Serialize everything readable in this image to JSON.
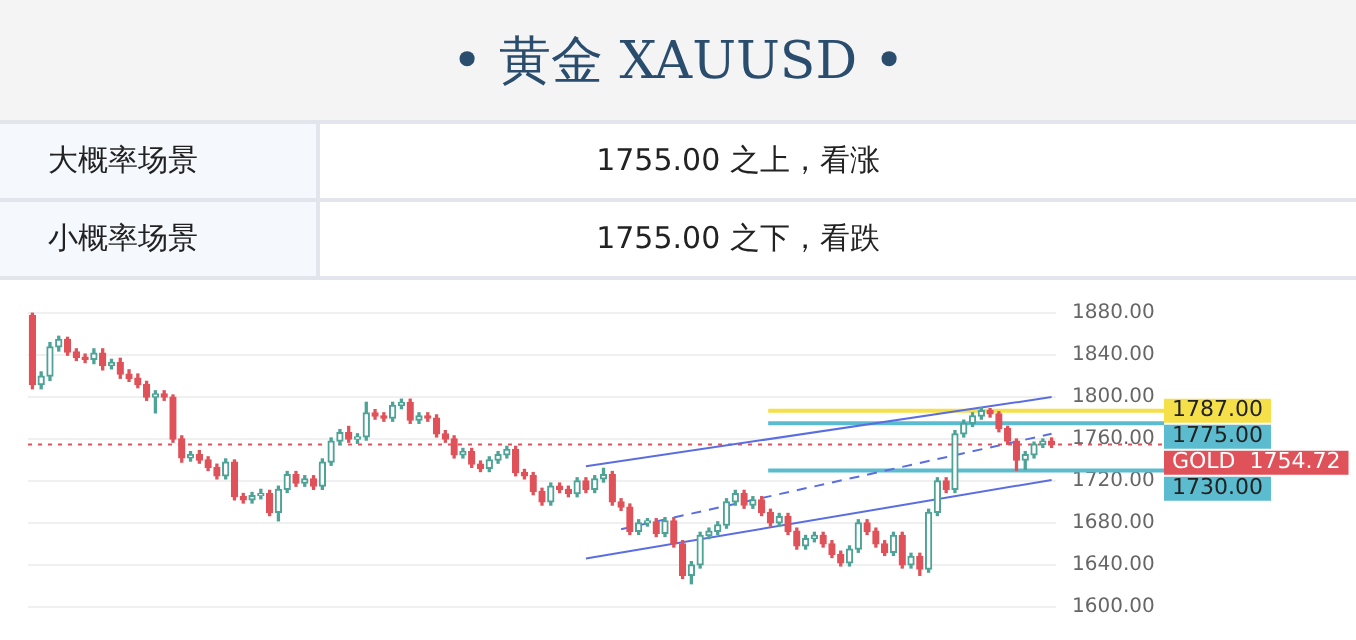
{
  "chart_data": [
    {
      "type": "other",
      "title": "• 黄金  XAUUSD •",
      "annotations": [
        "大概率场景",
        "1755.00 之上，看涨",
        "小概率场景",
        "1755.00 之下，看跌"
      ]
    },
    {
      "type": "candlestick",
      "categories": [
        null,
        null,
        null,
        null,
        null,
        null,
        null,
        null,
        null,
        null,
        null,
        null,
        null,
        null,
        null,
        null,
        null,
        null,
        null,
        null,
        null,
        null,
        null,
        null,
        null,
        null,
        null,
        null,
        null,
        null,
        null,
        null,
        null,
        null,
        null,
        null,
        null,
        null,
        null,
        null,
        null,
        null,
        null,
        null,
        null,
        null,
        null,
        null,
        null,
        null,
        null,
        null,
        null,
        null,
        null,
        null,
        null,
        null,
        null,
        null,
        null,
        null,
        null,
        null,
        null,
        null,
        null,
        null,
        null,
        null,
        null,
        null,
        null,
        null,
        null,
        null,
        null,
        null,
        null,
        null,
        null,
        null,
        null,
        null,
        null,
        null,
        null,
        null,
        null,
        null,
        null,
        null,
        null,
        null,
        null,
        null,
        null,
        null,
        null,
        null,
        null,
        null,
        null,
        null,
        null,
        null,
        null,
        null,
        null,
        null,
        null,
        null,
        null,
        null,
        null,
        null,
        null
      ],
      "ohlc": [
        [
          1878,
          1880,
          1808,
          1812
        ],
        [
          1812,
          1824,
          1808,
          1820
        ],
        [
          1820,
          1852,
          1816,
          1848
        ],
        [
          1848,
          1858,
          1844,
          1855
        ],
        [
          1855,
          1857,
          1840,
          1843
        ],
        [
          1843,
          1846,
          1835,
          1838
        ],
        [
          1838,
          1841,
          1833,
          1836
        ],
        [
          1836,
          1846,
          1832,
          1842
        ],
        [
          1842,
          1846,
          1826,
          1830
        ],
        [
          1830,
          1836,
          1827,
          1833
        ],
        [
          1833,
          1837,
          1818,
          1822
        ],
        [
          1822,
          1826,
          1815,
          1818
        ],
        [
          1818,
          1822,
          1809,
          1812
        ],
        [
          1812,
          1815,
          1797,
          1800
        ],
        [
          1800,
          1806,
          1785,
          1803
        ],
        [
          1803,
          1806,
          1797,
          1800
        ],
        [
          1800,
          1802,
          1757,
          1760
        ],
        [
          1760,
          1763,
          1738,
          1742
        ],
        [
          1742,
          1748,
          1739,
          1745
        ],
        [
          1745,
          1749,
          1737,
          1740
        ],
        [
          1740,
          1743,
          1730,
          1733
        ],
        [
          1733,
          1736,
          1722,
          1725
        ],
        [
          1725,
          1741,
          1722,
          1738
        ],
        [
          1738,
          1740,
          1702,
          1705
        ],
        [
          1705,
          1708,
          1699,
          1702
        ],
        [
          1702,
          1709,
          1699,
          1706
        ],
        [
          1706,
          1712,
          1703,
          1708
        ],
        [
          1708,
          1711,
          1687,
          1690
        ],
        [
          1690,
          1715,
          1682,
          1712
        ],
        [
          1712,
          1729,
          1709,
          1726
        ],
        [
          1726,
          1729,
          1715,
          1718
        ],
        [
          1718,
          1725,
          1715,
          1722
        ],
        [
          1722,
          1725,
          1712,
          1715
        ],
        [
          1715,
          1741,
          1712,
          1738
        ],
        [
          1738,
          1761,
          1735,
          1758
        ],
        [
          1758,
          1769,
          1755,
          1766
        ],
        [
          1766,
          1772,
          1757,
          1760
        ],
        [
          1760,
          1765,
          1756,
          1762
        ],
        [
          1762,
          1795,
          1759,
          1785
        ],
        [
          1785,
          1788,
          1779,
          1782
        ],
        [
          1782,
          1785,
          1777,
          1780
        ],
        [
          1780,
          1795,
          1777,
          1792
        ],
        [
          1792,
          1798,
          1789,
          1795
        ],
        [
          1795,
          1798,
          1775,
          1778
        ],
        [
          1778,
          1785,
          1775,
          1782
        ],
        [
          1782,
          1785,
          1777,
          1780
        ],
        [
          1780,
          1783,
          1762,
          1765
        ],
        [
          1765,
          1768,
          1757,
          1760
        ],
        [
          1760,
          1763,
          1742,
          1745
        ],
        [
          1745,
          1751,
          1742,
          1748
        ],
        [
          1748,
          1751,
          1733,
          1736
        ],
        [
          1736,
          1739,
          1729,
          1732
        ],
        [
          1732,
          1743,
          1729,
          1740
        ],
        [
          1740,
          1748,
          1737,
          1745
        ],
        [
          1745,
          1753,
          1742,
          1750
        ],
        [
          1750,
          1753,
          1725,
          1728
        ],
        [
          1728,
          1731,
          1722,
          1725
        ],
        [
          1725,
          1728,
          1707,
          1710
        ],
        [
          1710,
          1713,
          1697,
          1700
        ],
        [
          1700,
          1718,
          1697,
          1715
        ],
        [
          1715,
          1718,
          1709,
          1712
        ],
        [
          1712,
          1715,
          1705,
          1708
        ],
        [
          1708,
          1723,
          1705,
          1720
        ],
        [
          1720,
          1723,
          1709,
          1712
        ],
        [
          1712,
          1725,
          1709,
          1722
        ],
        [
          1722,
          1732,
          1719,
          1726
        ],
        [
          1726,
          1729,
          1697,
          1700
        ],
        [
          1700,
          1703,
          1692,
          1695
        ],
        [
          1695,
          1698,
          1669,
          1672
        ],
        [
          1672,
          1683,
          1669,
          1680
        ],
        [
          1680,
          1684,
          1677,
          1681
        ],
        [
          1681,
          1684,
          1667,
          1670
        ],
        [
          1670,
          1685,
          1667,
          1682
        ],
        [
          1682,
          1685,
          1657,
          1660
        ],
        [
          1660,
          1663,
          1627,
          1630
        ],
        [
          1630,
          1643,
          1622,
          1640
        ],
        [
          1640,
          1671,
          1637,
          1668
        ],
        [
          1668,
          1675,
          1665,
          1672
        ],
        [
          1672,
          1681,
          1669,
          1678
        ],
        [
          1678,
          1703,
          1675,
          1700
        ],
        [
          1700,
          1711,
          1697,
          1708
        ],
        [
          1708,
          1711,
          1694,
          1697
        ],
        [
          1697,
          1705,
          1694,
          1702
        ],
        [
          1702,
          1705,
          1687,
          1690
        ],
        [
          1690,
          1693,
          1677,
          1680
        ],
        [
          1680,
          1689,
          1677,
          1686
        ],
        [
          1686,
          1689,
          1669,
          1672
        ],
        [
          1672,
          1675,
          1655,
          1658
        ],
        [
          1658,
          1668,
          1655,
          1665
        ],
        [
          1665,
          1671,
          1662,
          1668
        ],
        [
          1668,
          1671,
          1657,
          1660
        ],
        [
          1660,
          1663,
          1647,
          1650
        ],
        [
          1650,
          1653,
          1639,
          1642
        ],
        [
          1642,
          1658,
          1639,
          1655
        ],
        [
          1655,
          1683,
          1652,
          1680
        ],
        [
          1680,
          1683,
          1669,
          1672
        ],
        [
          1672,
          1675,
          1657,
          1660
        ],
        [
          1660,
          1663,
          1649,
          1652
        ],
        [
          1652,
          1671,
          1649,
          1668
        ],
        [
          1668,
          1671,
          1637,
          1640
        ],
        [
          1640,
          1651,
          1637,
          1648
        ],
        [
          1648,
          1651,
          1630,
          1636
        ],
        [
          1636,
          1693,
          1633,
          1690
        ],
        [
          1690,
          1723,
          1687,
          1720
        ],
        [
          1720,
          1723,
          1709,
          1712
        ],
        [
          1712,
          1768,
          1709,
          1765
        ],
        [
          1765,
          1778,
          1762,
          1775
        ],
        [
          1775,
          1785,
          1772,
          1782
        ],
        [
          1782,
          1790,
          1779,
          1787
        ],
        [
          1787,
          1789,
          1781,
          1784
        ],
        [
          1784,
          1786,
          1767,
          1770
        ],
        [
          1770,
          1772,
          1755,
          1758
        ],
        [
          1758,
          1760,
          1730,
          1740
        ],
        [
          1740,
          1748,
          1731,
          1745
        ],
        [
          1745,
          1757,
          1742,
          1755
        ],
        [
          1755,
          1760,
          1752,
          1758
        ],
        [
          1758,
          1761,
          1752,
          1754.72
        ]
      ],
      "colors": [
        "#e0525a",
        "#4ea397",
        "#4ea397",
        "#4ea397",
        "#e0525a",
        "#e0525a",
        "#e0525a",
        "#4ea397",
        "#e0525a",
        "#4ea397",
        "#e0525a",
        "#e0525a",
        "#e0525a",
        "#e0525a",
        "#4ea397",
        "#e0525a",
        "#e0525a",
        "#e0525a",
        "#4ea397",
        "#e0525a",
        "#e0525a",
        "#e0525a",
        "#4ea397",
        "#e0525a",
        "#e0525a",
        "#4ea397",
        "#4ea397",
        "#e0525a",
        "#4ea397",
        "#4ea397",
        "#e0525a",
        "#4ea397",
        "#e0525a",
        "#4ea397",
        "#4ea397",
        "#4ea397",
        "#e0525a",
        "#4ea397",
        "#4ea397",
        "#e0525a",
        "#e0525a",
        "#4ea397",
        "#4ea397",
        "#e0525a",
        "#4ea397",
        "#e0525a",
        "#e0525a",
        "#e0525a",
        "#e0525a",
        "#4ea397",
        "#e0525a",
        "#e0525a",
        "#4ea397",
        "#4ea397",
        "#4ea397",
        "#e0525a",
        "#e0525a",
        "#e0525a",
        "#e0525a",
        "#4ea397",
        "#e0525a",
        "#e0525a",
        "#4ea397",
        "#e0525a",
        "#4ea397",
        "#4ea397",
        "#e0525a",
        "#e0525a",
        "#e0525a",
        "#4ea397",
        "#4ea397",
        "#e0525a",
        "#4ea397",
        "#e0525a",
        "#e0525a",
        "#4ea397",
        "#4ea397",
        "#4ea397",
        "#4ea397",
        "#4ea397",
        "#4ea397",
        "#e0525a",
        "#4ea397",
        "#e0525a",
        "#e0525a",
        "#4ea397",
        "#e0525a",
        "#e0525a",
        "#4ea397",
        "#4ea397",
        "#e0525a",
        "#e0525a",
        "#e0525a",
        "#4ea397",
        "#4ea397",
        "#e0525a",
        "#e0525a",
        "#e0525a",
        "#4ea397",
        "#e0525a",
        "#4ea397",
        "#e0525a",
        "#4ea397",
        "#4ea397",
        "#e0525a",
        "#4ea397",
        "#4ea397",
        "#4ea397",
        "#4ea397",
        "#e0525a",
        "#e0525a",
        "#e0525a",
        "#e0525a",
        "#4ea397",
        "#4ea397",
        "#4ea397",
        "#e0525a"
      ],
      "series": [
        {
          "type": "line",
          "color": "#5b6ee1",
          "line_style": "solid",
          "values": [
            null,
            null,
            null,
            null,
            null,
            null,
            null,
            null,
            null,
            null,
            null,
            null,
            null,
            null,
            null,
            null,
            null,
            null,
            null,
            null,
            null,
            null,
            null,
            null,
            null,
            null,
            null,
            null,
            null,
            null,
            null,
            null,
            null,
            null,
            null,
            null,
            null,
            null,
            null,
            null,
            null,
            null,
            null,
            null,
            null,
            null,
            null,
            null,
            null,
            null,
            null,
            null,
            null,
            null,
            null,
            null,
            null,
            null,
            null,
            null,
            null,
            null,
            null,
            1734,
            null,
            null,
            null,
            null,
            null,
            null,
            null,
            null,
            null,
            null,
            null,
            null,
            null,
            null,
            null,
            null,
            null,
            null,
            null,
            null,
            null,
            null,
            null,
            null,
            null,
            null,
            null,
            null,
            null,
            null,
            null,
            null,
            null,
            null,
            null,
            null,
            null,
            null,
            null,
            null,
            null,
            null,
            null,
            null,
            null,
            null,
            null,
            null,
            null,
            null,
            null,
            null,
            1800
          ]
        },
        {
          "type": "line",
          "color": "#5b6ee1",
          "line_style": "dashed",
          "values": [
            null,
            null,
            null,
            null,
            null,
            null,
            null,
            null,
            null,
            null,
            null,
            null,
            null,
            null,
            null,
            null,
            null,
            null,
            null,
            null,
            null,
            null,
            null,
            null,
            null,
            null,
            null,
            null,
            null,
            null,
            null,
            null,
            null,
            null,
            null,
            null,
            null,
            null,
            null,
            null,
            null,
            null,
            null,
            null,
            null,
            null,
            null,
            null,
            null,
            null,
            null,
            null,
            null,
            null,
            null,
            null,
            null,
            null,
            null,
            null,
            null,
            null,
            null,
            null,
            null,
            null,
            null,
            1674,
            null,
            null,
            null,
            null,
            null,
            null,
            null,
            null,
            null,
            null,
            null,
            null,
            null,
            null,
            null,
            null,
            null,
            null,
            null,
            null,
            null,
            null,
            null,
            null,
            null,
            null,
            null,
            null,
            null,
            null,
            null,
            null,
            null,
            null,
            null,
            null,
            null,
            null,
            null,
            null,
            null,
            null,
            null,
            null,
            null,
            null,
            null,
            null,
            1765
          ]
        },
        {
          "type": "line",
          "color": "#5b6ee1",
          "line_style": "solid",
          "values": [
            null,
            null,
            null,
            null,
            null,
            null,
            null,
            null,
            null,
            null,
            null,
            null,
            null,
            null,
            null,
            null,
            null,
            null,
            null,
            null,
            null,
            null,
            null,
            null,
            null,
            null,
            null,
            null,
            null,
            null,
            null,
            null,
            null,
            null,
            null,
            null,
            null,
            null,
            null,
            null,
            null,
            null,
            null,
            null,
            null,
            null,
            null,
            null,
            null,
            null,
            null,
            null,
            null,
            null,
            null,
            null,
            null,
            null,
            null,
            null,
            null,
            null,
            null,
            1646,
            null,
            null,
            null,
            null,
            null,
            null,
            null,
            null,
            null,
            null,
            null,
            null,
            null,
            null,
            null,
            null,
            null,
            null,
            null,
            null,
            null,
            null,
            null,
            null,
            null,
            null,
            null,
            null,
            null,
            null,
            null,
            null,
            null,
            null,
            null,
            null,
            null,
            null,
            null,
            null,
            null,
            null,
            null,
            null,
            null,
            null,
            null,
            null,
            null,
            null,
            null,
            null,
            1721
          ]
        }
      ],
      "ylim": [
        1595,
        1885
      ],
      "yticks": [
        {
          "value": 1600,
          "label": "1600.00"
        },
        {
          "value": 1640,
          "label": "1640.00"
        },
        {
          "value": 1680,
          "label": "1680.00"
        },
        {
          "value": 1720,
          "label": "1720.00"
        },
        {
          "value": 1760,
          "label": "1760.00"
        },
        {
          "value": 1800,
          "label": "1800.00"
        },
        {
          "value": 1840,
          "label": "1840.00"
        },
        {
          "value": 1880,
          "label": "1880.00"
        }
      ],
      "ref_lines": [
        {
          "axis": "y",
          "value": 1787,
          "label": "1787.00",
          "color": "#f5e04a",
          "line_style": "solid"
        },
        {
          "axis": "y",
          "value": 1775,
          "label": "1775.00",
          "color": "#5bbcd0",
          "line_style": "solid"
        },
        {
          "axis": "y",
          "value": 1730,
          "label": "1730.00",
          "color": "#5bbcd0",
          "line_style": "solid"
        },
        {
          "axis": "y",
          "value": 1754.72,
          "label": "GOLD  1754.72",
          "color": "#e0525a",
          "line_style": "dotted"
        }
      ],
      "grid": "y",
      "legend": false,
      "tick_labels": "y"
    }
  ]
}
